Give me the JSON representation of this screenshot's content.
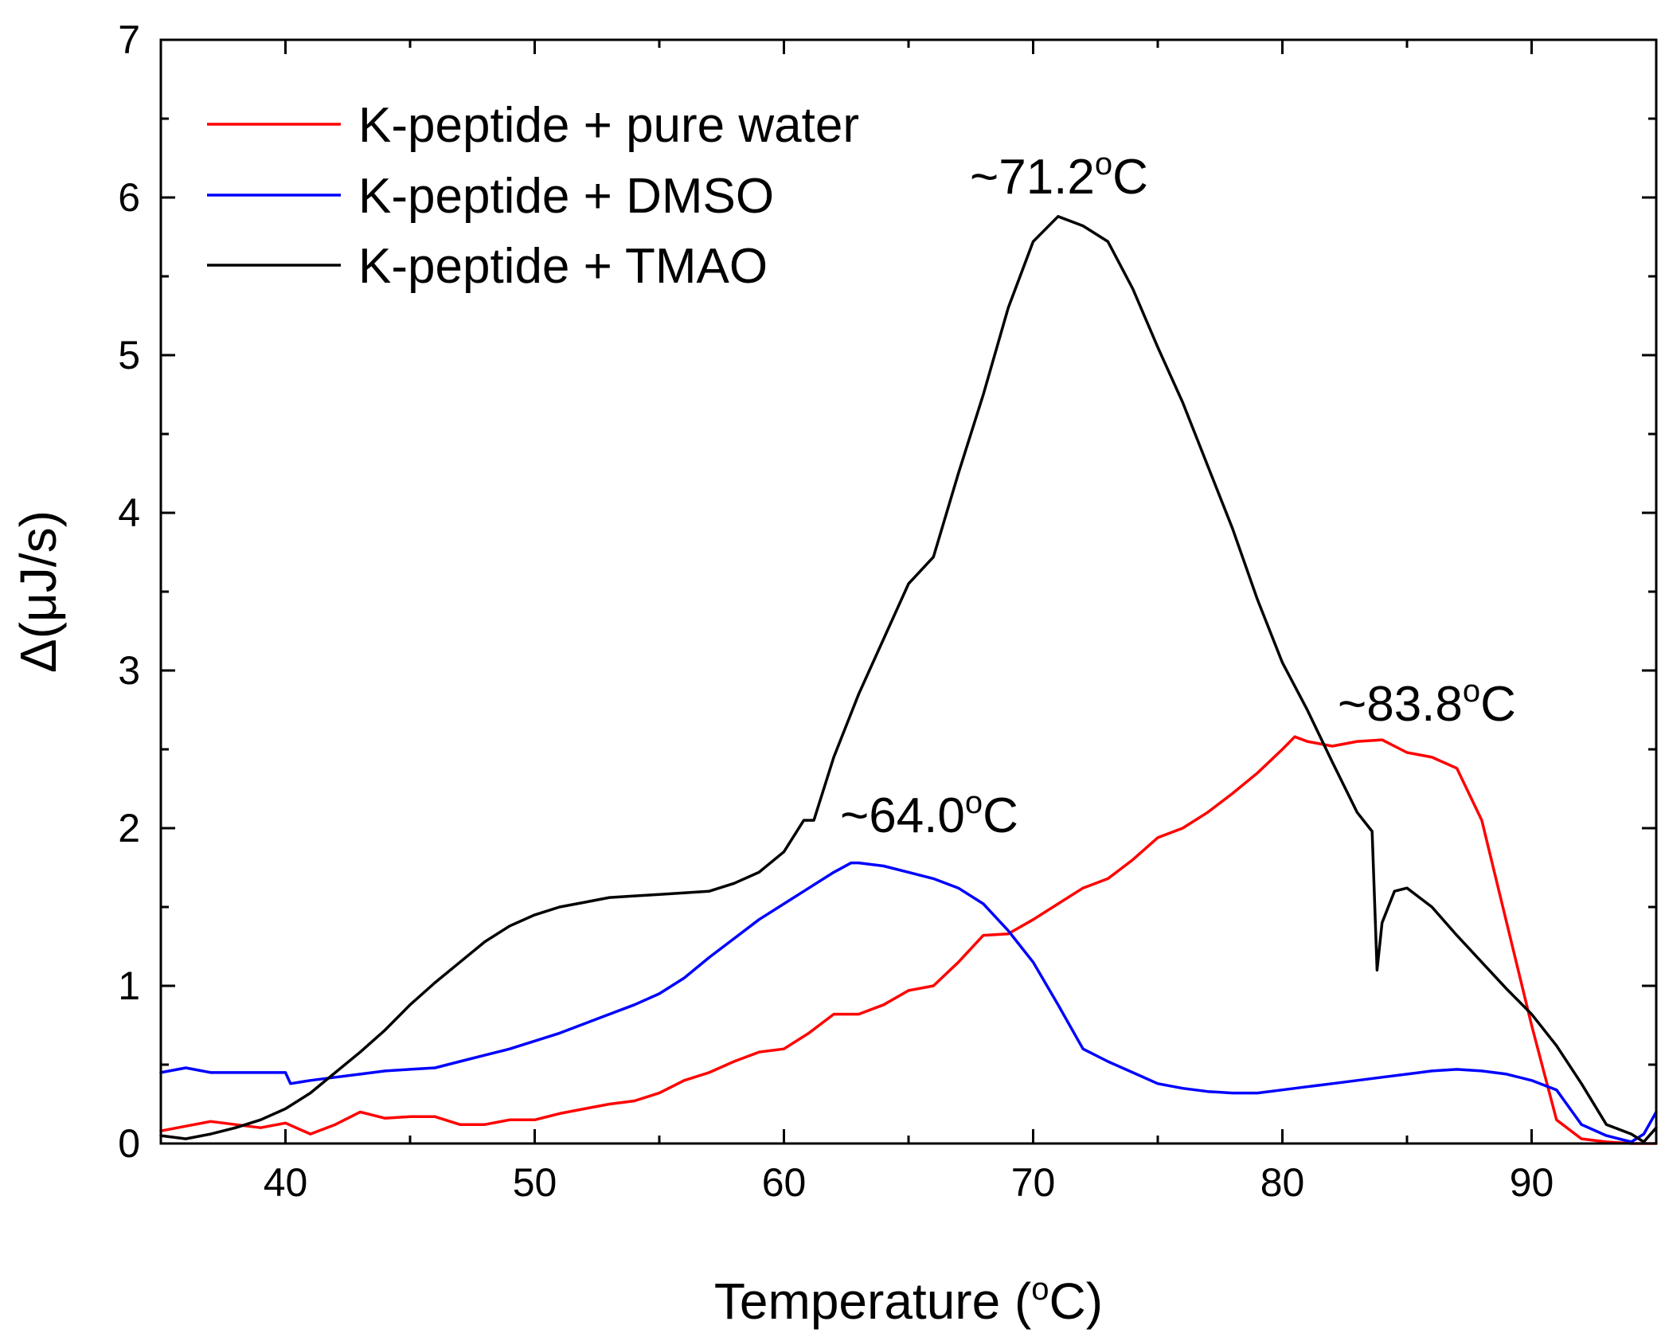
{
  "chart_data": {
    "type": "line",
    "title": "",
    "xlabel": "Temperature (",
    "xlabel_sup": "o",
    "xlabel_tail": "C)",
    "ylabel": "Δ(μJ/s)",
    "xlim": [
      35,
      95
    ],
    "ylim": [
      0,
      7
    ],
    "xticks": [
      40,
      50,
      60,
      70,
      80,
      90
    ],
    "yticks": [
      0,
      1,
      2,
      3,
      4,
      5,
      6,
      7
    ],
    "legend_position": "top-left",
    "series": [
      {
        "name": "K-peptide + pure water",
        "color": "#ff0000",
        "x": [
          35,
          37,
          39,
          40,
          41,
          42,
          43,
          44,
          45,
          46,
          47,
          48,
          49,
          50,
          51,
          52,
          53,
          54,
          55,
          56,
          57,
          58,
          59,
          60,
          61,
          62,
          63,
          64,
          65,
          66,
          67,
          68,
          69,
          70,
          71,
          72,
          73,
          74,
          75,
          76,
          77,
          78,
          79,
          80,
          80.5,
          81,
          82,
          83,
          84,
          85,
          86,
          87,
          88,
          89,
          90,
          91,
          92,
          93,
          94,
          95
        ],
        "y": [
          0.08,
          0.14,
          0.1,
          0.13,
          0.06,
          0.12,
          0.2,
          0.16,
          0.17,
          0.17,
          0.12,
          0.12,
          0.15,
          0.15,
          0.19,
          0.22,
          0.25,
          0.27,
          0.32,
          0.4,
          0.45,
          0.52,
          0.58,
          0.6,
          0.7,
          0.82,
          0.82,
          0.88,
          0.97,
          1.0,
          1.15,
          1.32,
          1.33,
          1.42,
          1.52,
          1.62,
          1.68,
          1.8,
          1.94,
          2.0,
          2.1,
          2.22,
          2.35,
          2.5,
          2.58,
          2.55,
          2.52,
          2.55,
          2.56,
          2.48,
          2.45,
          2.38,
          2.05,
          1.4,
          0.75,
          0.15,
          0.03,
          0.01,
          0.0,
          0.0
        ]
      },
      {
        "name": "K-peptide + DMSO",
        "color": "#0000ff",
        "x": [
          35,
          36,
          37,
          38,
          39,
          40,
          40.2,
          41,
          42,
          43,
          44,
          45,
          46,
          47,
          48,
          49,
          50,
          51,
          52,
          53,
          54,
          55,
          56,
          57,
          58,
          59,
          60,
          61,
          62,
          62.7,
          63,
          64,
          65,
          66,
          67,
          68,
          69,
          70,
          71,
          72,
          73,
          74,
          75,
          76,
          77,
          78,
          79,
          80,
          81,
          82,
          83,
          84,
          85,
          86,
          87,
          88,
          89,
          90,
          91,
          92,
          93,
          94,
          94.5,
          95
        ],
        "y": [
          0.45,
          0.48,
          0.45,
          0.45,
          0.45,
          0.45,
          0.38,
          0.4,
          0.42,
          0.44,
          0.46,
          0.47,
          0.48,
          0.52,
          0.56,
          0.6,
          0.65,
          0.7,
          0.76,
          0.82,
          0.88,
          0.95,
          1.05,
          1.18,
          1.3,
          1.42,
          1.52,
          1.62,
          1.72,
          1.78,
          1.78,
          1.76,
          1.72,
          1.68,
          1.62,
          1.52,
          1.35,
          1.15,
          0.88,
          0.6,
          0.52,
          0.45,
          0.38,
          0.35,
          0.33,
          0.32,
          0.32,
          0.34,
          0.36,
          0.38,
          0.4,
          0.42,
          0.44,
          0.46,
          0.47,
          0.46,
          0.44,
          0.4,
          0.34,
          0.12,
          0.05,
          0.01,
          0.06,
          0.2
        ]
      },
      {
        "name": "K-peptide + TMAO",
        "color": "#000000",
        "x": [
          35,
          36,
          37,
          38,
          39,
          40,
          41,
          42,
          43,
          44,
          45,
          46,
          47,
          48,
          49,
          50,
          51,
          52,
          53,
          54,
          55,
          56,
          57,
          58,
          59,
          60,
          60.8,
          61.2,
          62,
          63,
          64,
          65,
          66,
          67,
          68,
          69,
          70,
          71,
          72,
          73,
          74,
          75,
          76,
          77,
          78,
          79,
          80,
          81,
          82,
          83,
          83.6,
          83.8,
          84,
          84.5,
          85,
          86,
          87,
          88,
          89,
          90,
          91,
          92,
          93,
          94,
          94.5,
          95
        ],
        "y": [
          0.05,
          0.03,
          0.06,
          0.1,
          0.15,
          0.22,
          0.32,
          0.45,
          0.58,
          0.72,
          0.88,
          1.02,
          1.15,
          1.28,
          1.38,
          1.45,
          1.5,
          1.53,
          1.56,
          1.57,
          1.58,
          1.59,
          1.6,
          1.65,
          1.72,
          1.85,
          2.05,
          2.05,
          2.45,
          2.85,
          3.2,
          3.55,
          3.72,
          4.25,
          4.75,
          5.3,
          5.72,
          5.88,
          5.82,
          5.72,
          5.42,
          5.05,
          4.7,
          4.3,
          3.9,
          3.45,
          3.05,
          2.75,
          2.42,
          2.1,
          1.98,
          1.1,
          1.4,
          1.6,
          1.62,
          1.5,
          1.32,
          1.15,
          0.98,
          0.82,
          0.62,
          0.38,
          0.12,
          0.06,
          0.01,
          0.1
        ]
      }
    ],
    "annotations": [
      {
        "id": "peak-tmao",
        "prefix": "~71.2",
        "sup": "o",
        "suffix": "C",
        "x": 71.2
      },
      {
        "id": "peak-water",
        "prefix": "~83.8",
        "sup": "o",
        "suffix": "C",
        "x": 83.8
      },
      {
        "id": "peak-dmso",
        "prefix": "~64.0",
        "sup": "o",
        "suffix": "C",
        "x": 64.0
      }
    ]
  }
}
